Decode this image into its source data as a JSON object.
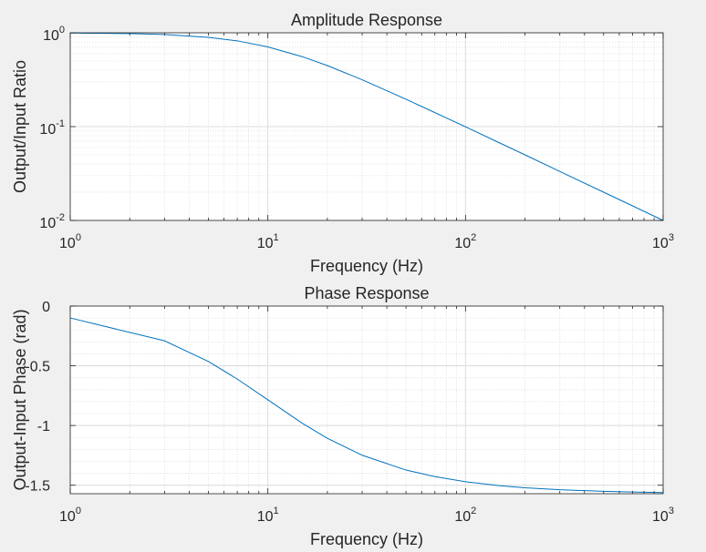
{
  "chart_data": [
    {
      "type": "line",
      "title": "Amplitude Response",
      "xlabel": "Frequency (Hz)",
      "ylabel": "Output/Input Ratio",
      "xscale": "log",
      "yscale": "log",
      "xlim": [
        1,
        1000
      ],
      "ylim": [
        0.01,
        1
      ],
      "grid": true,
      "minor_grid": true,
      "line_color": "#0072bd",
      "x_ticks": [
        {
          "base": "10",
          "exp": "0"
        },
        {
          "base": "10",
          "exp": "1"
        },
        {
          "base": "10",
          "exp": "2"
        },
        {
          "base": "10",
          "exp": "3"
        }
      ],
      "y_ticks": [
        {
          "base": "10",
          "exp": "0"
        },
        {
          "base": "10",
          "exp": "-1"
        },
        {
          "base": "10",
          "exp": "-2"
        }
      ],
      "series": [
        {
          "x": [
            1,
            2,
            3,
            5,
            7,
            10,
            15,
            20,
            30,
            50,
            70,
            100,
            150,
            200,
            300,
            500,
            700,
            1000
          ],
          "y": [
            0.995,
            0.981,
            0.958,
            0.895,
            0.821,
            0.707,
            0.555,
            0.447,
            0.316,
            0.196,
            0.141,
            0.0995,
            0.0665,
            0.05,
            0.0333,
            0.02,
            0.0143,
            0.01
          ]
        }
      ]
    },
    {
      "type": "line",
      "title": "Phase Response",
      "xlabel": "Frequency (Hz)",
      "ylabel": "Output-Input Phase (rad)",
      "xscale": "log",
      "yscale": "linear",
      "xlim": [
        1,
        1000
      ],
      "ylim": [
        -1.571,
        0
      ],
      "grid": true,
      "minor_grid": true,
      "line_color": "#0072bd",
      "x_ticks": [
        {
          "base": "10",
          "exp": "0"
        },
        {
          "base": "10",
          "exp": "1"
        },
        {
          "base": "10",
          "exp": "2"
        },
        {
          "base": "10",
          "exp": "3"
        }
      ],
      "y_ticks": [
        {
          "value": 0,
          "label": "0"
        },
        {
          "value": -0.5,
          "label": "-0.5"
        },
        {
          "value": -1,
          "label": "-1"
        },
        {
          "value": -1.5,
          "label": "-1.5"
        }
      ],
      "series": [
        {
          "x": [
            1,
            3,
            5,
            7,
            10,
            15,
            20,
            30,
            50,
            70,
            100,
            150,
            200,
            300,
            500,
            700,
            1000
          ],
          "y": [
            -0.0997,
            -0.291,
            -0.464,
            -0.611,
            -0.785,
            -0.983,
            -1.107,
            -1.249,
            -1.373,
            -1.428,
            -1.471,
            -1.504,
            -1.521,
            -1.538,
            -1.551,
            -1.557,
            -1.561
          ]
        }
      ]
    }
  ]
}
